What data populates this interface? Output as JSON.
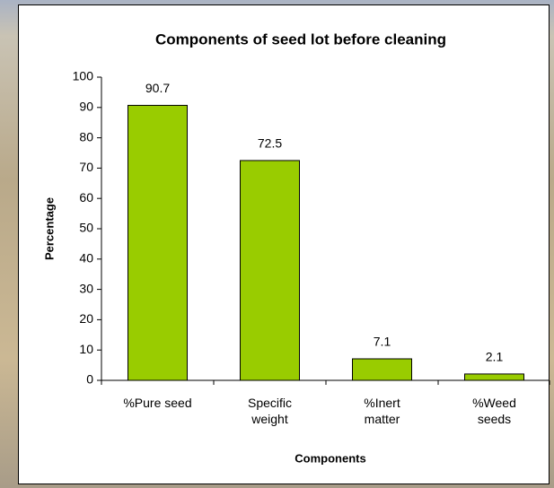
{
  "chart_data": {
    "type": "bar",
    "title": "Components of seed lot before cleaning",
    "x_label": "Components",
    "y_label": "Percentage",
    "categories": [
      "%Pure seed",
      "Specific weight",
      "%Inert matter",
      "%Weed seeds"
    ],
    "values": [
      90.7,
      72.5,
      7.1,
      2.1
    ],
    "color": "#99cc00",
    "ylim": [
      0,
      100
    ],
    "yticks": [
      0,
      10,
      20,
      30,
      40,
      50,
      60,
      70,
      80,
      90,
      100
    ],
    "grid": false
  }
}
